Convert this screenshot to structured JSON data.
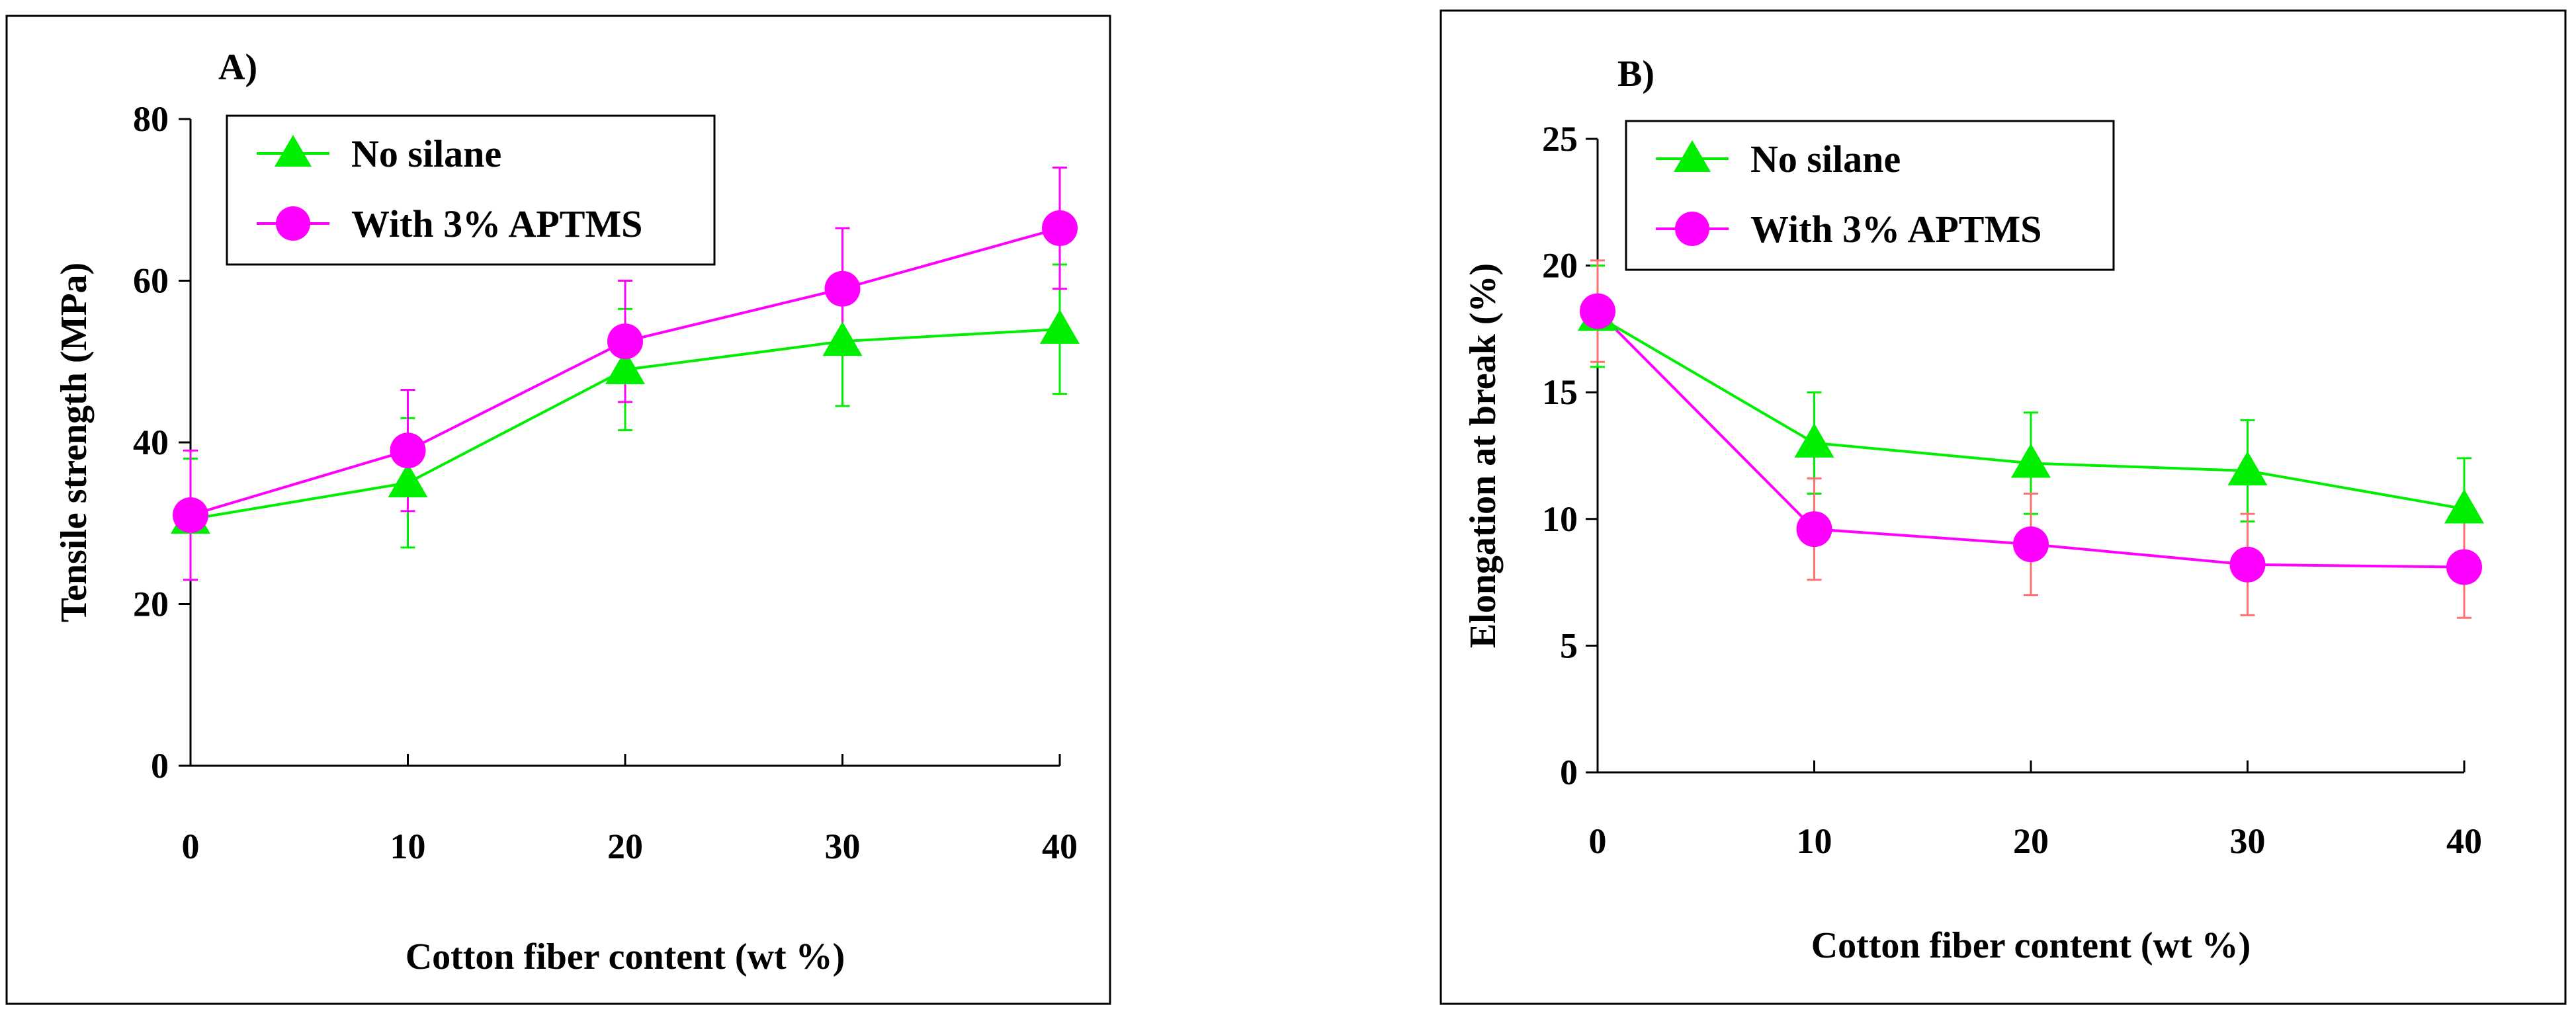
{
  "colors": {
    "no_silane": "#00ee00",
    "aptms": "#ff00ff",
    "aptms_error_bar_b": "#ff7070",
    "frame": "#000000"
  },
  "chart_data": [
    {
      "type": "line",
      "panel": "A)",
      "x": [
        0,
        10,
        20,
        30,
        40
      ],
      "xlabel": "Cotton fiber content (wt %)",
      "ylabel": "Tensile strength (MPa)",
      "xlim": [
        0,
        40
      ],
      "ylim": [
        0,
        80
      ],
      "xticks": [
        0,
        10,
        20,
        30,
        40
      ],
      "yticks": [
        0,
        20,
        40,
        60,
        80
      ],
      "grid": false,
      "legend_position": "top-left",
      "series": [
        {
          "name": "No silane",
          "marker": "triangle",
          "values": [
            30.5,
            35,
            49,
            52.5,
            54
          ],
          "errors": [
            7.5,
            8,
            7.5,
            8,
            8
          ]
        },
        {
          "name": "With 3% APTMS",
          "marker": "circle",
          "values": [
            31,
            39,
            52.5,
            59,
            66.5
          ],
          "errors": [
            8,
            7.5,
            7.5,
            7.5,
            7.5
          ]
        }
      ]
    },
    {
      "type": "line",
      "panel": "B)",
      "x": [
        0,
        10,
        20,
        30,
        40
      ],
      "xlabel": "Cotton fiber content (wt %)",
      "ylabel": "Elongation at break (%)",
      "xlim": [
        0,
        40
      ],
      "ylim": [
        0,
        25
      ],
      "xticks": [
        0,
        10,
        20,
        30,
        40
      ],
      "yticks": [
        0,
        5,
        10,
        15,
        20,
        25
      ],
      "grid": false,
      "legend_position": "top-left",
      "series": [
        {
          "name": "No silane",
          "marker": "triangle",
          "values": [
            18,
            13,
            12.2,
            11.9,
            10.4
          ],
          "errors": [
            2,
            2,
            2,
            2,
            2
          ]
        },
        {
          "name": "With 3% APTMS",
          "marker": "circle",
          "values": [
            18.2,
            9.6,
            9.0,
            8.2,
            8.1
          ],
          "errors": [
            2,
            2,
            2,
            2,
            2
          ]
        }
      ]
    }
  ]
}
